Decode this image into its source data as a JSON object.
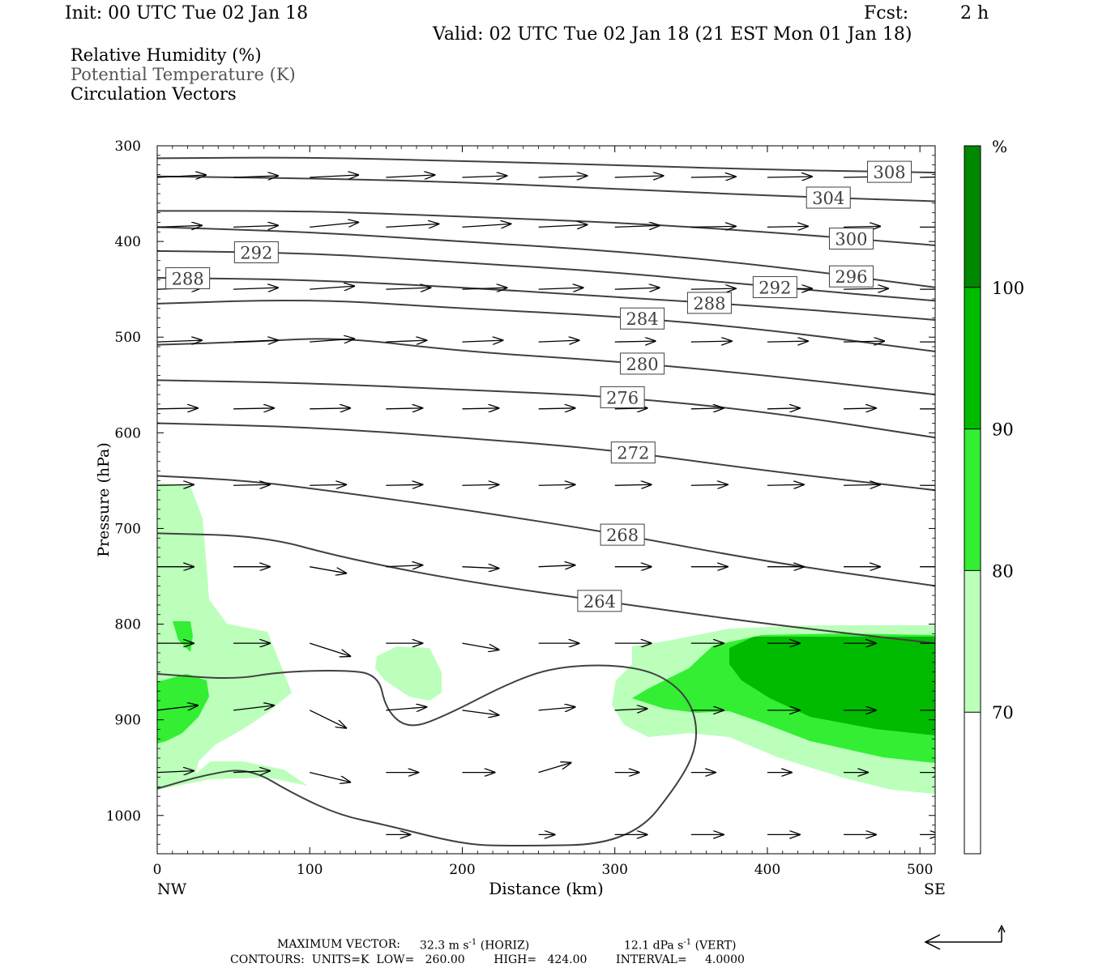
{
  "header": {
    "init": "Init: 00 UTC Tue 02 Jan 18",
    "fcst_label": "Fcst:",
    "fcst_value": "2 h",
    "valid": "Valid: 02 UTC Tue 02 Jan 18 (21 EST Mon 01 Jan 18)",
    "fields": [
      {
        "label": "Relative Humidity (%)",
        "color": "#000000"
      },
      {
        "label": "Potential Temperature (K)",
        "color": "#555555"
      },
      {
        "label": "Circulation Vectors",
        "color": "#000000"
      }
    ]
  },
  "footer": {
    "max_vector_label": "MAXIMUM VECTOR:",
    "horiz": "32.3 m s",
    "horiz_unit": "(HORIZ)",
    "vert": "12.1 dPa s",
    "vert_unit": "(VERT)",
    "superscript": "-1",
    "contours": "CONTOURS:  UNITS=K  LOW=   260.00        HIGH=   424.00        INTERVAL=     4.0000"
  },
  "chart_data": {
    "type": "cross-section",
    "xlabel": "Distance (km)",
    "ylabel": "Pressure (hPa)",
    "x_endpoint_labels": [
      "NW",
      "SE"
    ],
    "xlim": [
      0,
      510
    ],
    "ylim": [
      1040,
      300
    ],
    "xticks": [
      0,
      100,
      200,
      300,
      400,
      500
    ],
    "yticks": [
      300,
      400,
      500,
      600,
      700,
      800,
      900,
      1000
    ],
    "colorbar": {
      "unit": "%",
      "levels": [
        70,
        80,
        90,
        100
      ],
      "colors": [
        "#ffffff",
        "#bbffbb",
        "#33ee33",
        "#00bb00",
        "#008800"
      ]
    },
    "theta_contours": [
      {
        "value": 308,
        "points": [
          [
            0,
            313
          ],
          [
            100,
            312
          ],
          [
            200,
            316
          ],
          [
            300,
            320
          ],
          [
            400,
            325
          ],
          [
            510,
            328
          ]
        ]
      },
      {
        "value": 304,
        "points": [
          [
            0,
            332
          ],
          [
            100,
            334
          ],
          [
            200,
            338
          ],
          [
            300,
            345
          ],
          [
            400,
            352
          ],
          [
            510,
            358
          ]
        ]
      },
      {
        "value": 300,
        "points": [
          [
            0,
            368
          ],
          [
            100,
            368
          ],
          [
            200,
            374
          ],
          [
            300,
            380
          ],
          [
            400,
            390
          ],
          [
            510,
            404
          ]
        ]
      },
      {
        "value": 296,
        "points": [
          [
            0,
            385
          ],
          [
            100,
            390
          ],
          [
            200,
            400
          ],
          [
            300,
            410
          ],
          [
            400,
            425
          ],
          [
            510,
            448
          ]
        ]
      },
      {
        "value": 292,
        "points": [
          [
            0,
            410
          ],
          [
            100,
            412
          ],
          [
            200,
            422
          ],
          [
            300,
            432
          ],
          [
            400,
            447
          ],
          [
            510,
            462
          ]
        ]
      },
      {
        "value": 288,
        "points": [
          [
            0,
            438
          ],
          [
            100,
            440
          ],
          [
            200,
            448
          ],
          [
            300,
            458
          ],
          [
            400,
            468
          ],
          [
            510,
            482
          ]
        ]
      },
      {
        "value": 284,
        "points": [
          [
            0,
            465
          ],
          [
            100,
            460
          ],
          [
            200,
            470
          ],
          [
            300,
            478
          ],
          [
            400,
            492
          ],
          [
            510,
            515
          ]
        ]
      },
      {
        "value": 280,
        "points": [
          [
            0,
            508
          ],
          [
            60,
            505
          ],
          [
            120,
            500
          ],
          [
            200,
            515
          ],
          [
            300,
            525
          ],
          [
            400,
            540
          ],
          [
            510,
            560
          ]
        ]
      },
      {
        "value": 276,
        "points": [
          [
            0,
            545
          ],
          [
            100,
            548
          ],
          [
            200,
            555
          ],
          [
            300,
            562
          ],
          [
            400,
            578
          ],
          [
            510,
            605
          ]
        ]
      },
      {
        "value": 272,
        "points": [
          [
            0,
            590
          ],
          [
            100,
            594
          ],
          [
            200,
            605
          ],
          [
            300,
            618
          ],
          [
            400,
            640
          ],
          [
            510,
            660
          ]
        ]
      },
      {
        "value": 268,
        "points": [
          [
            0,
            645
          ],
          [
            60,
            650
          ],
          [
            120,
            662
          ],
          [
            200,
            680
          ],
          [
            300,
            705
          ],
          [
            400,
            735
          ],
          [
            510,
            760
          ]
        ]
      },
      {
        "value": 264,
        "points": [
          [
            0,
            705
          ],
          [
            70,
            708
          ],
          [
            120,
            730
          ],
          [
            200,
            755
          ],
          [
            300,
            778
          ],
          [
            400,
            800
          ],
          [
            510,
            820
          ]
        ]
      },
      {
        "value": 260,
        "points": [
          [
            0,
            852
          ],
          [
            50,
            858
          ],
          [
            80,
            850
          ],
          [
            120,
            848
          ],
          [
            145,
            852
          ],
          [
            150,
            890
          ],
          [
            165,
            910
          ],
          [
            190,
            895
          ],
          [
            230,
            862
          ],
          [
            260,
            845
          ],
          [
            300,
            842
          ],
          [
            330,
            852
          ],
          [
            350,
            880
          ],
          [
            355,
            920
          ],
          [
            345,
            960
          ],
          [
            310,
            1030
          ],
          [
            230,
            1032
          ],
          [
            200,
            1030
          ],
          [
            150,
            1010
          ],
          [
            120,
            1000
          ],
          [
            90,
            978
          ],
          [
            60,
            950
          ],
          [
            30,
            958
          ],
          [
            0,
            972
          ]
        ]
      }
    ],
    "max_vector_scale": {
      "horiz": 32.3,
      "vert": 12.1
    },
    "vectors_note": "Circulation vectors point predominantly west-to-east (NW to SE) with small vertical components."
  }
}
